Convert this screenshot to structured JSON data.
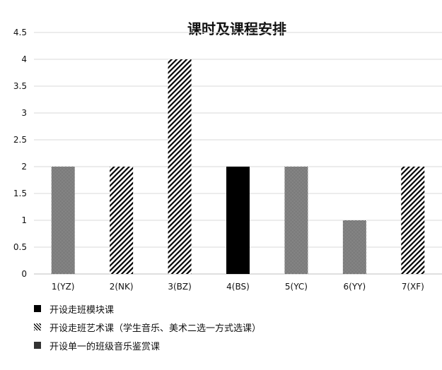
{
  "chart_data": {
    "type": "bar",
    "title": "课时及课程安排",
    "categories": [
      "1(YZ)",
      "2(NK)",
      "3(BZ)",
      "4(BS)",
      "5(YC)",
      "6(YY)",
      "7(XF)"
    ],
    "values": [
      2,
      2,
      4,
      2,
      2,
      1,
      2
    ],
    "bar_course_type": [
      2,
      1,
      1,
      0,
      2,
      2,
      1
    ],
    "ylim": [
      0,
      4.5
    ],
    "yticks": [
      "0",
      "0.5",
      "1",
      "1.5",
      "2",
      "2.5",
      "3",
      "3.5",
      "4",
      "4.5"
    ],
    "grid": "horizontal",
    "legend_position": "bottom",
    "legend": [
      {
        "label": "开设走班模块课",
        "pattern": "solid"
      },
      {
        "label": "开设走班艺术课（学生音乐、美术二选一方式选课）",
        "pattern": "diagonal"
      },
      {
        "label": "开设单一的班级音乐鉴赏课",
        "pattern": "dots"
      }
    ],
    "colors": {
      "bar": "#000000",
      "grid": "#d9d9d9",
      "background": "#ffffff"
    }
  }
}
